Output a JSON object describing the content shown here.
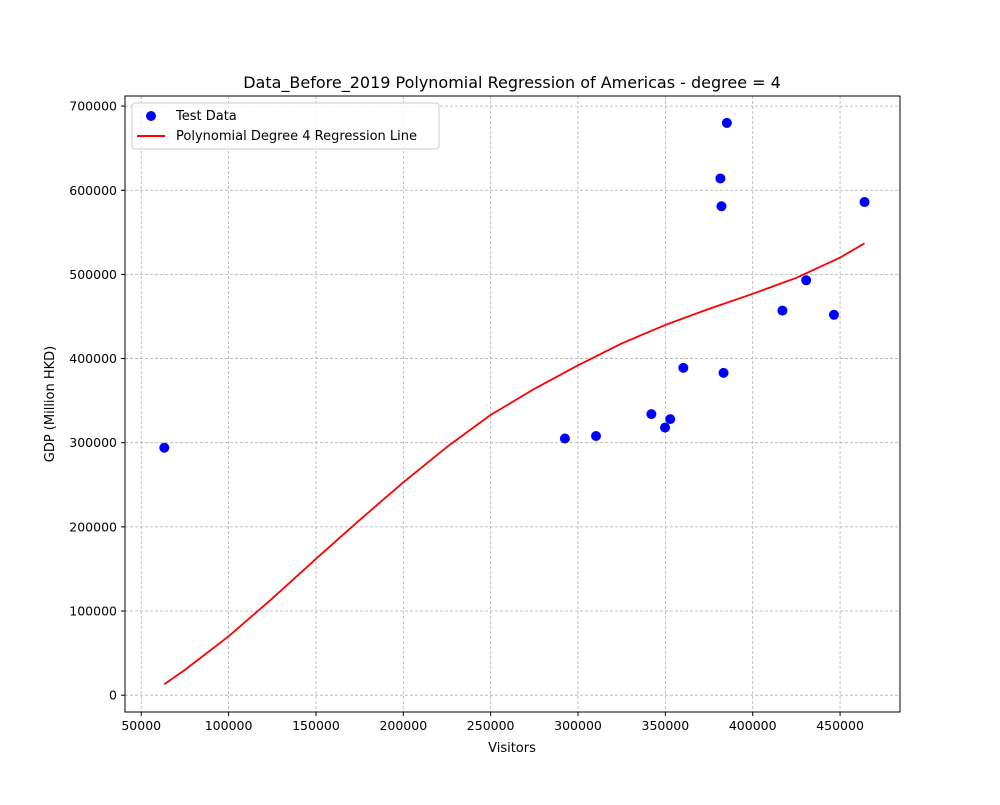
{
  "chart_data": {
    "type": "scatter",
    "title": "Data_Before_2019 Polynomial Regression of Americas - degree = 4",
    "xlabel": "Visitors",
    "ylabel": "GDP (Million HKD)",
    "xlim": [
      40700,
      484300
    ],
    "ylim": [
      -20000,
      712000
    ],
    "xticks": [
      50000,
      100000,
      150000,
      200000,
      250000,
      300000,
      350000,
      400000,
      450000
    ],
    "xtick_labels": [
      "50000",
      "100000",
      "150000",
      "200000",
      "250000",
      "300000",
      "350000",
      "400000",
      "450000"
    ],
    "yticks": [
      0,
      100000,
      200000,
      300000,
      400000,
      500000,
      600000,
      700000
    ],
    "ytick_labels": [
      "0",
      "100000",
      "200000",
      "300000",
      "400000",
      "500000",
      "600000",
      "700000"
    ],
    "grid": true,
    "legend_position": "top-left",
    "series": [
      {
        "name": "Test Data",
        "kind": "scatter",
        "color": "#0000ff",
        "points": [
          [
            63200,
            294000
          ],
          [
            292500,
            305000
          ],
          [
            310300,
            308000
          ],
          [
            342000,
            334000
          ],
          [
            349800,
            318000
          ],
          [
            352800,
            328000
          ],
          [
            360300,
            389000
          ],
          [
            381500,
            614000
          ],
          [
            382100,
            581000
          ],
          [
            383300,
            383000
          ],
          [
            385200,
            680000
          ],
          [
            417000,
            457000
          ],
          [
            430600,
            493000
          ],
          [
            446500,
            452000
          ],
          [
            464000,
            586000
          ]
        ]
      },
      {
        "name": "Polynomial Degree 4 Regression Line",
        "kind": "line",
        "color": "#ff0000",
        "points": [
          [
            63200,
            13000
          ],
          [
            75000,
            30000
          ],
          [
            100000,
            70000
          ],
          [
            125000,
            115000
          ],
          [
            150000,
            162000
          ],
          [
            175000,
            208000
          ],
          [
            200000,
            253000
          ],
          [
            225000,
            295000
          ],
          [
            250000,
            333000
          ],
          [
            275000,
            364000
          ],
          [
            300000,
            392000
          ],
          [
            325000,
            418000
          ],
          [
            350000,
            440000
          ],
          [
            375000,
            459000
          ],
          [
            400000,
            477000
          ],
          [
            425000,
            496000
          ],
          [
            450000,
            520000
          ],
          [
            464000,
            537000
          ]
        ]
      }
    ]
  }
}
